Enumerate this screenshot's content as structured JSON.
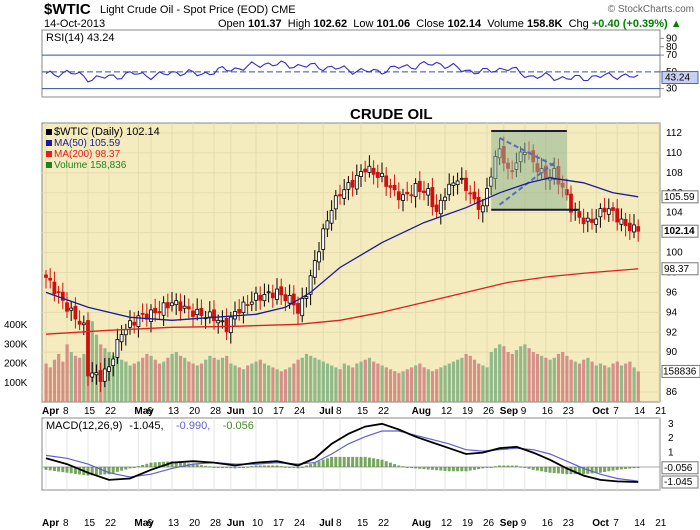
{
  "header": {
    "symbol": "$WTIC",
    "name": "Light Crude Oil - Spot Price (EOD)",
    "exchange": "CME",
    "date": "14-Oct-2013",
    "open_label": "Open",
    "open": "101.37",
    "high_label": "High",
    "high": "102.62",
    "low_label": "Low",
    "low": "101.06",
    "close_label": "Close",
    "close": "102.14",
    "volume_label": "Volume",
    "volume": "158.8K",
    "chg_label": "Chg",
    "chg": "+0.40 (+0.39%)",
    "watermark": "© StockCharts.com",
    "arrow": "▲"
  },
  "colors": {
    "price_bg": "#f4ecbe",
    "indicator_bg": "#ffffff",
    "rsi_line": "#3030c0",
    "ma50": "#1a1a9a",
    "ma200": "#e02020",
    "up_candle": "#000000",
    "down_candle": "#d01010",
    "volume_up": "#80b080",
    "volume_down": "#d08080",
    "pattern_fill": "#8fb48f",
    "macd_line": "#000000",
    "signal_line": "#6060d0",
    "histogram": "#4a8a2a"
  },
  "chart_data": [
    {
      "type": "line",
      "title": "RSI(14) 43.24",
      "legend": [
        {
          "label": "RSI(14) 43.24"
        }
      ],
      "ylim": [
        20,
        100
      ],
      "yticks": [
        90,
        80,
        70,
        50,
        43.24,
        30
      ],
      "last_label": "43.24",
      "reference_lines": [
        70,
        50,
        30
      ],
      "x": [
        0,
        5,
        10,
        15,
        20,
        25,
        30,
        35,
        40,
        45,
        50,
        55,
        60,
        65,
        70,
        75,
        80,
        85,
        90,
        95,
        100,
        105,
        110,
        115,
        120,
        125,
        130,
        135
      ],
      "values": [
        46,
        50,
        42,
        44,
        48,
        45,
        50,
        47,
        52,
        55,
        60,
        58,
        57,
        55,
        52,
        50,
        55,
        58,
        60,
        52,
        50,
        55,
        45,
        44,
        42,
        44,
        46,
        43.24
      ]
    },
    {
      "type": "candlestick",
      "annotation": "CRUDE OIL",
      "legend": [
        {
          "label": "$WTIC (Daily) 102.14"
        },
        {
          "label": "MA(50) 105.59"
        },
        {
          "label": "MA(200) 98.37"
        },
        {
          "label": "Volume 158,836"
        }
      ],
      "ylim": [
        85,
        113
      ],
      "yticks": [
        112,
        110,
        108,
        106,
        104,
        102,
        100,
        98,
        96,
        94,
        92,
        90,
        88,
        86
      ],
      "value_labels": [
        {
          "text": "105.59",
          "value": 105.59
        },
        {
          "text": "102.14",
          "value": 102.14
        },
        {
          "text": "98.37",
          "value": 98.37
        }
      ],
      "volume_ticks": [
        {
          "text": "400K",
          "value": 400
        },
        {
          "text": "300K",
          "value": 300
        },
        {
          "text": "200K",
          "value": 200
        },
        {
          "text": "100K",
          "value": 100
        }
      ],
      "volume_ylim": [
        0,
        520
      ],
      "volume_last_label": "158836",
      "x_labels": [
        {
          "text": "Apr",
          "i": 0
        },
        {
          "text": "8",
          "i": 5
        },
        {
          "text": "15",
          "i": 10
        },
        {
          "text": "22",
          "i": 15
        },
        {
          "text": "May",
          "i": 22
        },
        {
          "text": "6",
          "i": 25
        },
        {
          "text": "13",
          "i": 30
        },
        {
          "text": "20",
          "i": 35
        },
        {
          "text": "28",
          "i": 40
        },
        {
          "text": "Jun",
          "i": 44
        },
        {
          "text": "10",
          "i": 50
        },
        {
          "text": "17",
          "i": 55
        },
        {
          "text": "24",
          "i": 60
        },
        {
          "text": "Jul",
          "i": 66
        },
        {
          "text": "8",
          "i": 70
        },
        {
          "text": "15",
          "i": 75
        },
        {
          "text": "22",
          "i": 80
        },
        {
          "text": "Aug",
          "i": 88
        },
        {
          "text": "12",
          "i": 95
        },
        {
          "text": "19",
          "i": 100
        },
        {
          "text": "26",
          "i": 105
        },
        {
          "text": "Sep",
          "i": 109
        },
        {
          "text": "9",
          "i": 114
        },
        {
          "text": "16",
          "i": 119
        },
        {
          "text": "23",
          "i": 124
        },
        {
          "text": "Oct",
          "i": 131
        },
        {
          "text": "7",
          "i": 136
        },
        {
          "text": "14",
          "i": 141
        },
        {
          "text": "21",
          "i": 146
        }
      ],
      "n_bars": 142,
      "price_path": [
        [
          0,
          97.5
        ],
        [
          5,
          94.5
        ],
        [
          9,
          92.5
        ],
        [
          10,
          88
        ],
        [
          13,
          87.5
        ],
        [
          15,
          88.5
        ],
        [
          18,
          92
        ],
        [
          22,
          93.5
        ],
        [
          26,
          94
        ],
        [
          30,
          95
        ],
        [
          35,
          94
        ],
        [
          40,
          93.5
        ],
        [
          43,
          92.5
        ],
        [
          45,
          94
        ],
        [
          50,
          95.5
        ],
        [
          55,
          96
        ],
        [
          59,
          95
        ],
        [
          60,
          94
        ],
        [
          62,
          96
        ],
        [
          64,
          99
        ],
        [
          66,
          102
        ],
        [
          68,
          104.5
        ],
        [
          70,
          106
        ],
        [
          73,
          107
        ],
        [
          76,
          108.5
        ],
        [
          80,
          107.5
        ],
        [
          83,
          106
        ],
        [
          85,
          105.5
        ],
        [
          88,
          106.5
        ],
        [
          91,
          106
        ],
        [
          93,
          104
        ],
        [
          95,
          106
        ],
        [
          98,
          107.5
        ],
        [
          101,
          106
        ],
        [
          102,
          105
        ],
        [
          104,
          104.5
        ],
        [
          106,
          108
        ],
        [
          108,
          110.5
        ],
        [
          110,
          108
        ],
        [
          112,
          109
        ],
        [
          114,
          110.5
        ],
        [
          116,
          109
        ],
        [
          119,
          107.5
        ],
        [
          121,
          108
        ],
        [
          123,
          106.5
        ],
        [
          125,
          104.5
        ],
        [
          127,
          103.5
        ],
        [
          129,
          103
        ],
        [
          131,
          103.5
        ],
        [
          133,
          104.5
        ],
        [
          135,
          104
        ],
        [
          137,
          103
        ],
        [
          139,
          102.5
        ],
        [
          141,
          102.14
        ]
      ],
      "ma50": [
        [
          0,
          96
        ],
        [
          10,
          94.5
        ],
        [
          20,
          93.5
        ],
        [
          30,
          93.2
        ],
        [
          40,
          93.5
        ],
        [
          50,
          93.8
        ],
        [
          57,
          94.5
        ],
        [
          63,
          96
        ],
        [
          70,
          98.5
        ],
        [
          80,
          101
        ],
        [
          90,
          103
        ],
        [
          100,
          104.5
        ],
        [
          108,
          106
        ],
        [
          115,
          107
        ],
        [
          120,
          107.5
        ],
        [
          128,
          107
        ],
        [
          135,
          106
        ],
        [
          141,
          105.59
        ]
      ],
      "ma200": [
        [
          0,
          91.8
        ],
        [
          15,
          92.2
        ],
        [
          30,
          92.5
        ],
        [
          45,
          92.6
        ],
        [
          60,
          92.8
        ],
        [
          70,
          93.2
        ],
        [
          80,
          94
        ],
        [
          90,
          95
        ],
        [
          100,
          96
        ],
        [
          110,
          97
        ],
        [
          120,
          97.6
        ],
        [
          130,
          98
        ],
        [
          141,
          98.37
        ]
      ],
      "volume": [
        200,
        180,
        220,
        250,
        210,
        300,
        260,
        240,
        230,
        250,
        380,
        420,
        350,
        300,
        280,
        260,
        240,
        230,
        220,
        210,
        190,
        200,
        210,
        230,
        250,
        240,
        220,
        200,
        210,
        230,
        250,
        260,
        240,
        230,
        210,
        200,
        190,
        200,
        220,
        240,
        230,
        220,
        230,
        240,
        200,
        190,
        180,
        170,
        190,
        200,
        210,
        220,
        200,
        190,
        180,
        170,
        160,
        170,
        180,
        200,
        220,
        230,
        250,
        240,
        230,
        220,
        210,
        200,
        190,
        180,
        170,
        200,
        190,
        180,
        200,
        210,
        220,
        230,
        210,
        200,
        190,
        180,
        170,
        160,
        150,
        160,
        170,
        180,
        190,
        200,
        180,
        170,
        160,
        170,
        180,
        190,
        200,
        210,
        220,
        230,
        250,
        240,
        220,
        200,
        190,
        180,
        260,
        280,
        300,
        290,
        260,
        250,
        270,
        290,
        300,
        280,
        260,
        250,
        240,
        230,
        220,
        230,
        250,
        260,
        240,
        220,
        210,
        200,
        220,
        230,
        210,
        190,
        200,
        190,
        180,
        200,
        210,
        190,
        200,
        210,
        180,
        159
      ],
      "pattern_box": {
        "i0": 106,
        "i1": 124,
        "y0": 104.3,
        "y1": 112.2
      },
      "pattern_lines": [
        {
          "i0": 106,
          "v0": 104.3,
          "i1": 127,
          "v1": 104.3,
          "style": "solid"
        },
        {
          "i0": 106,
          "v0": 112.2,
          "i1": 124,
          "v1": 112.2,
          "style": "solid"
        },
        {
          "i0": 108,
          "v0": 111.5,
          "i1": 122,
          "v1": 108.5,
          "style": "dashed"
        },
        {
          "i0": 108,
          "v0": 104.8,
          "i1": 121,
          "v1": 109,
          "style": "dashed"
        }
      ]
    },
    {
      "type": "line",
      "title": "MACD(12,26,9) -1.045, -0.990, -0.056",
      "legend": [
        {
          "label": "MACD(12,26,9)",
          "color": "#000000"
        },
        {
          "label": "-1.045,",
          "color": "#000000"
        },
        {
          "label": "-0.990,",
          "color": "#6060d0"
        },
        {
          "label": "-0.056",
          "color": "#4a8a2a"
        }
      ],
      "ylim": [
        -1.6,
        3.4
      ],
      "yticks": [
        3,
        2,
        1,
        0
      ],
      "value_labels": [
        {
          "text": "-0.056",
          "value": -0.056
        },
        {
          "text": "-1.045",
          "value": -1.045
        }
      ],
      "series": [
        {
          "name": "MACD",
          "points": [
            [
              0,
              0.6
            ],
            [
              5,
              0.2
            ],
            [
              10,
              -0.4
            ],
            [
              15,
              -0.9
            ],
            [
              20,
              -0.8
            ],
            [
              25,
              -0.2
            ],
            [
              30,
              0.3
            ],
            [
              35,
              0.4
            ],
            [
              40,
              0.3
            ],
            [
              45,
              0.1
            ],
            [
              50,
              0.3
            ],
            [
              55,
              0.4
            ],
            [
              60,
              0.1
            ],
            [
              64,
              0.6
            ],
            [
              68,
              1.6
            ],
            [
              72,
              2.3
            ],
            [
              76,
              2.8
            ],
            [
              80,
              3.0
            ],
            [
              84,
              2.6
            ],
            [
              88,
              2.1
            ],
            [
              92,
              1.7
            ],
            [
              96,
              1.3
            ],
            [
              100,
              0.9
            ],
            [
              104,
              1.0
            ],
            [
              108,
              1.3
            ],
            [
              112,
              1.4
            ],
            [
              116,
              1.0
            ],
            [
              120,
              0.5
            ],
            [
              124,
              -0.1
            ],
            [
              128,
              -0.6
            ],
            [
              132,
              -0.9
            ],
            [
              136,
              -1.0
            ],
            [
              141,
              -1.045
            ]
          ]
        },
        {
          "name": "Signal",
          "points": [
            [
              0,
              0.8
            ],
            [
              5,
              0.6
            ],
            [
              10,
              0.2
            ],
            [
              15,
              -0.4
            ],
            [
              20,
              -0.7
            ],
            [
              25,
              -0.5
            ],
            [
              30,
              -0.1
            ],
            [
              35,
              0.2
            ],
            [
              40,
              0.3
            ],
            [
              45,
              0.2
            ],
            [
              50,
              0.2
            ],
            [
              55,
              0.3
            ],
            [
              60,
              0.2
            ],
            [
              64,
              0.3
            ],
            [
              68,
              0.9
            ],
            [
              72,
              1.6
            ],
            [
              76,
              2.1
            ],
            [
              80,
              2.5
            ],
            [
              84,
              2.5
            ],
            [
              88,
              2.2
            ],
            [
              92,
              1.9
            ],
            [
              96,
              1.6
            ],
            [
              100,
              1.2
            ],
            [
              104,
              1.1
            ],
            [
              108,
              1.2
            ],
            [
              112,
              1.3
            ],
            [
              116,
              1.2
            ],
            [
              120,
              0.9
            ],
            [
              124,
              0.4
            ],
            [
              128,
              -0.1
            ],
            [
              132,
              -0.5
            ],
            [
              136,
              -0.8
            ],
            [
              141,
              -0.99
            ]
          ]
        }
      ]
    }
  ]
}
